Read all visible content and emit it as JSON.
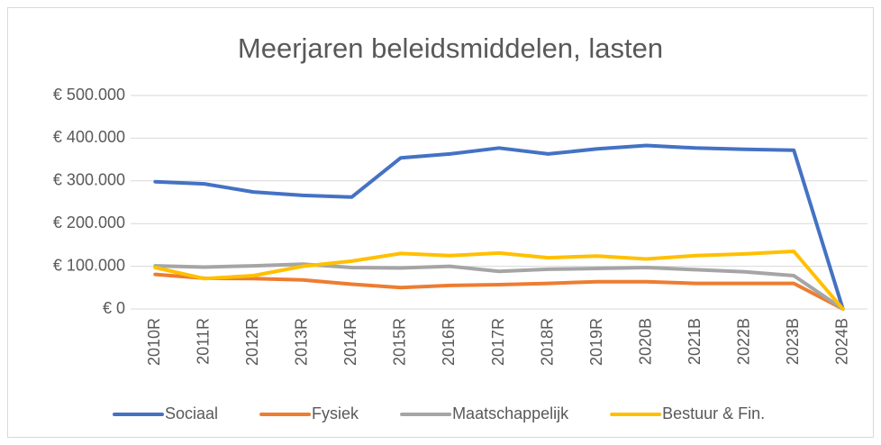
{
  "chart_data": {
    "type": "line",
    "title": "Meerjaren beleidsmiddelen, lasten",
    "categories": [
      "2010R",
      "2011R",
      "2012R",
      "2013R",
      "2014R",
      "2015R",
      "2016R",
      "2017R",
      "2018R",
      "2019R",
      "2020B",
      "2021B",
      "2022B",
      "2023B",
      "2024B"
    ],
    "series": [
      {
        "name": "Sociaal",
        "color": "#4472c4",
        "values": [
          298000,
          293000,
          274000,
          266000,
          262000,
          354000,
          363000,
          377000,
          363000,
          375000,
          383000,
          377000,
          374000,
          372000,
          0
        ]
      },
      {
        "name": "Fysiek",
        "color": "#ed7d31",
        "values": [
          81000,
          72000,
          71000,
          68000,
          58000,
          50000,
          55000,
          57000,
          60000,
          64000,
          64000,
          60000,
          60000,
          60000,
          0
        ]
      },
      {
        "name": "Maatschappelijk",
        "color": "#a5a5a5",
        "values": [
          101000,
          98000,
          101000,
          105000,
          97000,
          96000,
          100000,
          88000,
          93000,
          95000,
          97000,
          92000,
          87000,
          78000,
          0
        ]
      },
      {
        "name": "Bestuur & Fin.",
        "color": "#ffc000",
        "values": [
          97000,
          71000,
          78000,
          100000,
          112000,
          130000,
          125000,
          131000,
          120000,
          124000,
          117000,
          125000,
          129000,
          135000,
          0
        ]
      }
    ],
    "ylim": [
      0,
      500000
    ],
    "yticks": [
      {
        "value": 0,
        "label": "€ 0"
      },
      {
        "value": 100000,
        "label": "€ 100.000"
      },
      {
        "value": 200000,
        "label": "€ 200.000"
      },
      {
        "value": 300000,
        "label": "€ 300.000"
      },
      {
        "value": 400000,
        "label": "€ 400.000"
      },
      {
        "value": 500000,
        "label": "€ 500.000"
      }
    ],
    "grid": true,
    "legend": "bottom"
  }
}
